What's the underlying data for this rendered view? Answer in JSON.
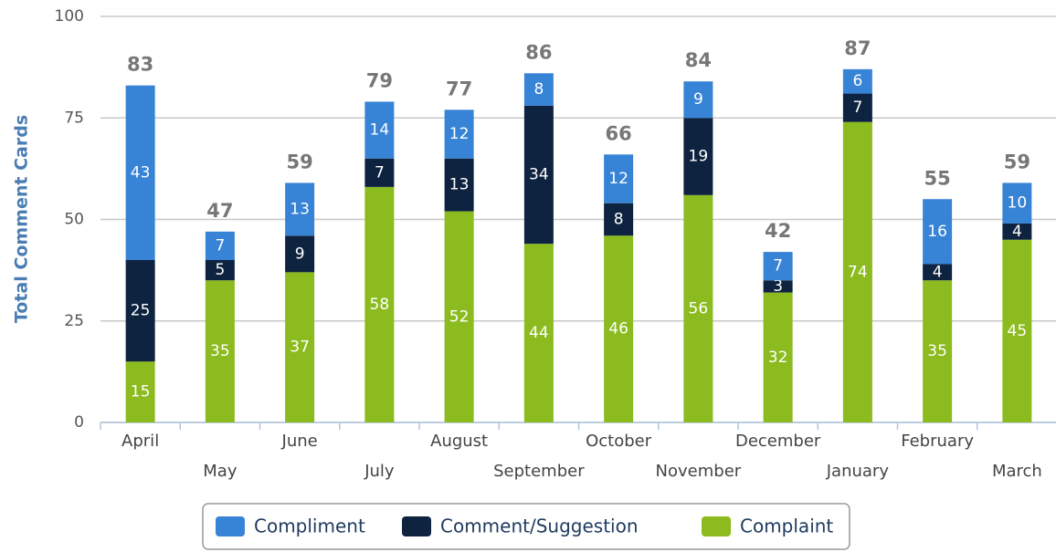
{
  "chart_data": {
    "type": "stacked_bar",
    "y_axis_label": "Total Comment Cards",
    "categories": [
      "April",
      "May",
      "June",
      "July",
      "August",
      "September",
      "October",
      "November",
      "December",
      "January",
      "February",
      "March"
    ],
    "series": [
      {
        "name": "Complaint",
        "color": "#8cbb1f",
        "values": [
          15,
          35,
          37,
          58,
          52,
          44,
          46,
          56,
          32,
          74,
          35,
          45
        ]
      },
      {
        "name": "Comment/Suggestion",
        "color": "#0e2340",
        "values": [
          25,
          5,
          9,
          7,
          13,
          34,
          8,
          19,
          3,
          7,
          4,
          4
        ]
      },
      {
        "name": "Compliment",
        "color": "#3783d6",
        "values": [
          43,
          7,
          13,
          14,
          12,
          8,
          12,
          9,
          7,
          6,
          16,
          10
        ]
      }
    ],
    "totals": [
      83,
      47,
      59,
      79,
      77,
      86,
      66,
      84,
      42,
      87,
      55,
      59
    ],
    "legend_order": [
      2,
      1,
      0
    ],
    "ylim": [
      0,
      100
    ],
    "yticks": [
      0,
      25,
      50,
      75,
      100
    ],
    "grid": true,
    "legend": "bottom"
  }
}
